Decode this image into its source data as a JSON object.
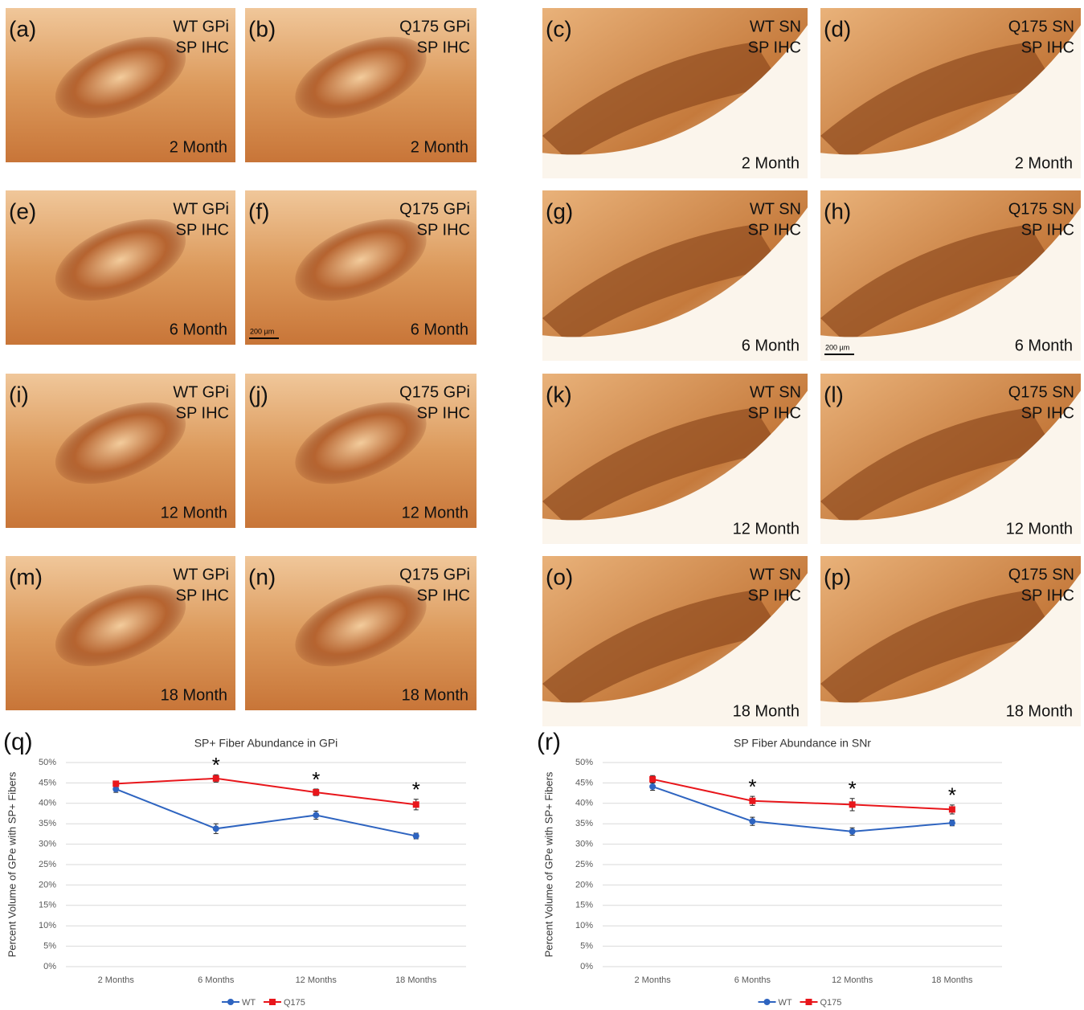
{
  "panels": [
    {
      "letter": "(a)",
      "label": [
        "WT GPi",
        "SP IHC"
      ],
      "age": "2 Month"
    },
    {
      "letter": "(b)",
      "label": [
        "Q175 GPi",
        "SP IHC"
      ],
      "age": "2 Month"
    },
    {
      "letter": "(c)",
      "label": [
        "WT SN",
        "SP IHC"
      ],
      "age": "2 Month"
    },
    {
      "letter": "(d)",
      "label": [
        "Q175 SN",
        "SP IHC"
      ],
      "age": "2 Month"
    },
    {
      "letter": "(e)",
      "label": [
        "WT GPi",
        "SP IHC"
      ],
      "age": "6 Month"
    },
    {
      "letter": "(f)",
      "label": [
        "Q175 GPi",
        "SP IHC"
      ],
      "age": "6 Month",
      "scale_bar": "200 µm"
    },
    {
      "letter": "(g)",
      "label": [
        "WT SN",
        "SP IHC"
      ],
      "age": "6 Month"
    },
    {
      "letter": "(h)",
      "label": [
        "Q175 SN",
        "SP IHC"
      ],
      "age": "6 Month",
      "scale_bar": "200 µm"
    },
    {
      "letter": "(i)",
      "label": [
        "WT GPi",
        "SP IHC"
      ],
      "age": "12 Month"
    },
    {
      "letter": "(j)",
      "label": [
        "Q175 GPi",
        "SP IHC"
      ],
      "age": "12 Month"
    },
    {
      "letter": "(k)",
      "label": [
        "WT SN",
        "SP IHC"
      ],
      "age": "12 Month"
    },
    {
      "letter": "(l)",
      "label": [
        "Q175 SN",
        "SP IHC"
      ],
      "age": "12 Month"
    },
    {
      "letter": "(m)",
      "label": [
        "WT GPi",
        "SP IHC"
      ],
      "age": "18 Month"
    },
    {
      "letter": "(n)",
      "label": [
        "Q175 GPi",
        "SP IHC"
      ],
      "age": "18 Month"
    },
    {
      "letter": "(o)",
      "label": [
        "WT SN",
        "SP IHC"
      ],
      "age": "18 Month"
    },
    {
      "letter": "(p)",
      "label": [
        "Q175 SN",
        "SP IHC"
      ],
      "age": "18 Month"
    }
  ],
  "chart_data": [
    {
      "type": "line",
      "panel_label": "(q)",
      "title": "SP+ Fiber Abundance in GPi",
      "y_label": "Percent Volume of GPe with SP+ Fibers",
      "categories": [
        "2 Months",
        "6 Months",
        "12 Months",
        "18 Months"
      ],
      "series": [
        {
          "name": "WT",
          "color": "#2e64c0",
          "marker": "circle",
          "values": [
            43.5,
            33.8,
            37.1,
            32.0
          ],
          "errors": [
            0.8,
            1.2,
            1.0,
            0.7
          ]
        },
        {
          "name": "Q175",
          "color": "#e8161b",
          "marker": "square",
          "values": [
            44.8,
            46.1,
            42.7,
            39.7
          ],
          "errors": [
            0.6,
            0.9,
            0.8,
            1.3
          ]
        }
      ],
      "annotations": [
        null,
        "*",
        "*",
        "*"
      ],
      "ylim": [
        0,
        50
      ],
      "yticks": [
        {
          "value": 0,
          "label": "0%"
        },
        {
          "value": 5,
          "label": "5%"
        },
        {
          "value": 10,
          "label": "10%"
        },
        {
          "value": 15,
          "label": "15%"
        },
        {
          "value": 20,
          "label": "20%"
        },
        {
          "value": 25,
          "label": "25%"
        },
        {
          "value": 30,
          "label": "30%"
        },
        {
          "value": 35,
          "label": "35%"
        },
        {
          "value": 40,
          "label": "40%"
        },
        {
          "value": 45,
          "label": "45%"
        },
        {
          "value": 50,
          "label": "50%"
        }
      ],
      "grid": true,
      "legend": "bottom"
    },
    {
      "type": "line",
      "panel_label": "(r)",
      "title": "SP Fiber Abundance in SNr",
      "y_label": "Percent Volume of GPe with SP+ Fibers",
      "categories": [
        "2 Months",
        "6 Months",
        "12 Months",
        "18 Months"
      ],
      "series": [
        {
          "name": "WT",
          "color": "#2e64c0",
          "marker": "circle",
          "values": [
            44.1,
            35.6,
            33.1,
            35.2
          ],
          "errors": [
            0.9,
            1.0,
            0.9,
            0.7
          ]
        },
        {
          "name": "Q175",
          "color": "#e8161b",
          "marker": "square",
          "values": [
            45.9,
            40.6,
            39.7,
            38.5
          ],
          "errors": [
            0.9,
            1.1,
            1.5,
            1.1
          ]
        }
      ],
      "annotations": [
        null,
        "*",
        "*",
        "*"
      ],
      "ylim": [
        0,
        50
      ],
      "yticks": [
        {
          "value": 0,
          "label": "0%"
        },
        {
          "value": 5,
          "label": "5%"
        },
        {
          "value": 10,
          "label": "10%"
        },
        {
          "value": 15,
          "label": "15%"
        },
        {
          "value": 20,
          "label": "20%"
        },
        {
          "value": 25,
          "label": "25%"
        },
        {
          "value": 30,
          "label": "30%"
        },
        {
          "value": 35,
          "label": "35%"
        },
        {
          "value": 40,
          "label": "40%"
        },
        {
          "value": 45,
          "label": "45%"
        },
        {
          "value": 50,
          "label": "50%"
        }
      ],
      "grid": true,
      "legend": "bottom"
    }
  ]
}
